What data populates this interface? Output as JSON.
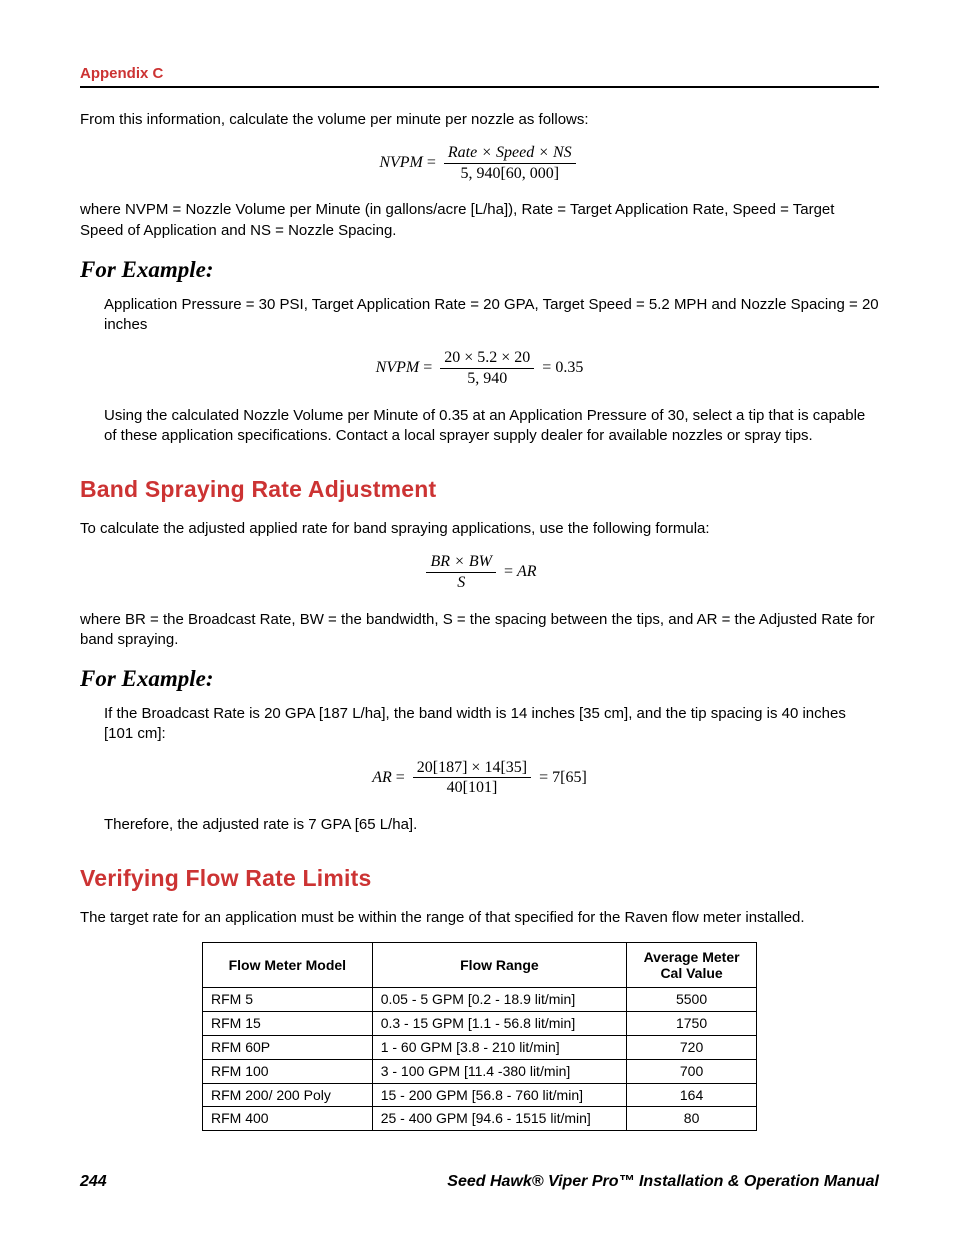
{
  "header": {
    "appendix": "Appendix C",
    "appendix_color": "#cc3333"
  },
  "intro": {
    "p1": "From this information, calculate the volume per minute per nozzle as follows:",
    "eq1_lhs": "NVPM",
    "eq1_num": "Rate × Speed × NS",
    "eq1_den": "5, 940[60, 000]",
    "p2": "where NVPM = Nozzle Volume per Minute (in gallons/acre [L/ha]), Rate = Target Application Rate, Speed = Target Speed of Application and NS = Nozzle Spacing."
  },
  "example1": {
    "heading": "For Example:",
    "p1": "Application Pressure = 30 PSI, Target Application Rate = 20 GPA, Target Speed = 5.2 MPH and Nozzle Spacing = 20 inches",
    "eq_lhs": "NVPM",
    "eq_num": "20 × 5.2 × 20",
    "eq_den": "5, 940",
    "eq_result": "0.35",
    "p2": "Using the calculated Nozzle Volume per Minute of 0.35 at an Application Pressure of 30, select a tip that is capable of these application specifications. Contact a local sprayer supply dealer for available nozzles or spray tips."
  },
  "band": {
    "heading": "Band Spraying Rate Adjustment",
    "p1": "To calculate the adjusted applied rate for band spraying applications, use the following formula:",
    "eq_num": "BR × BW",
    "eq_den": "S",
    "eq_rhs": "AR",
    "p2": "where BR = the Broadcast Rate, BW = the bandwidth, S = the spacing between the tips, and AR = the Adjusted Rate for band spraying."
  },
  "example2": {
    "heading": "For Example:",
    "p1": "If the Broadcast Rate is 20 GPA [187 L/ha], the band width is 14 inches [35 cm], and the tip spacing is 40 inches [101 cm]:",
    "eq_lhs": "AR",
    "eq_num": "20[187] × 14[35]",
    "eq_den": "40[101]",
    "eq_result": "7[65]",
    "p2": "Therefore, the adjusted rate is 7 GPA [65 L/ha]."
  },
  "flow": {
    "heading": "Verifying Flow Rate Limits",
    "p1": "The target rate for an application must be within the range of that specified for the Raven flow meter installed.",
    "columns": [
      "Flow Meter Model",
      "Flow Range",
      "Average Meter Cal Value"
    ],
    "rows": [
      [
        "RFM 5",
        "0.05 - 5 GPM [0.2 - 18.9 lit/min]",
        "5500"
      ],
      [
        "RFM 15",
        "0.3 - 15 GPM [1.1 - 56.8 lit/min]",
        "1750"
      ],
      [
        "RFM 60P",
        "1 - 60 GPM [3.8 - 210 lit/min]",
        "720"
      ],
      [
        "RFM 100",
        "3 - 100 GPM [11.4 -380 lit/min]",
        "700"
      ],
      [
        "RFM 200/ 200 Poly",
        "15 - 200 GPM [56.8 - 760 lit/min]",
        "164"
      ],
      [
        "RFM 400",
        "25 - 400 GPM [94.6 - 1515 lit/min]",
        "80"
      ]
    ]
  },
  "footer": {
    "page": "244",
    "title": "Seed Hawk® Viper Pro™ Installation & Operation Manual"
  },
  "styles": {
    "body_fontsize": 15,
    "heading_color": "#cc3333",
    "text_color": "#000000",
    "background": "#ffffff"
  }
}
